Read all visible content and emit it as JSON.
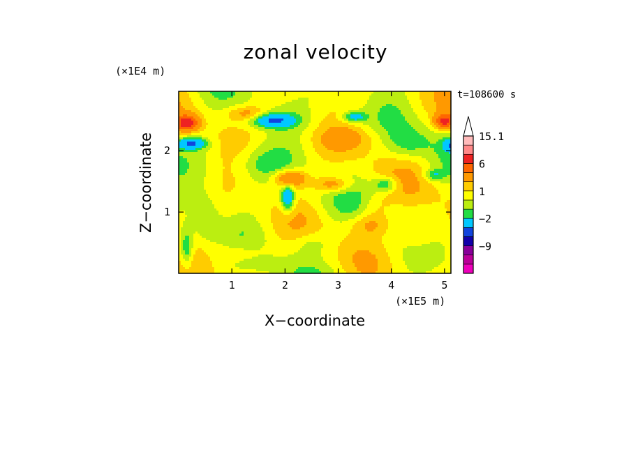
{
  "chart_data": {
    "type": "heatmap",
    "title": "zonal velocity",
    "xlabel": "X−coordinate",
    "ylabel": "Z−coordinate",
    "x_unit_label": "(×1E5 m)",
    "y_unit_label": "(×1E4 m)",
    "time_label": "t=108600 s",
    "xlim": [
      0,
      5.12
    ],
    "ylim": [
      0,
      2.97
    ],
    "x_ticks": [
      {
        "value": 1,
        "label": "1"
      },
      {
        "value": 2,
        "label": "2"
      },
      {
        "value": 3,
        "label": "3"
      },
      {
        "value": 4,
        "label": "4"
      },
      {
        "value": 5,
        "label": "5"
      }
    ],
    "y_ticks": [
      {
        "value": 1,
        "label": "1"
      },
      {
        "value": 2,
        "label": "2"
      }
    ],
    "colorbar": {
      "levels": [
        -15,
        -12,
        -9,
        -6,
        -4,
        -2,
        -1,
        0,
        1,
        2,
        4,
        6,
        9,
        12,
        15.1
      ],
      "colors": [
        "#ee00bb",
        "#bb0099",
        "#880099",
        "#1100aa",
        "#1144dd",
        "#00c8ff",
        "#22dd44",
        "#bbee11",
        "#ffff00",
        "#ffcc00",
        "#ff9900",
        "#ff6600",
        "#ee2222",
        "#ff8888",
        "#ffbbbb"
      ],
      "labels": [
        {
          "value": 15.1,
          "label": "15.1"
        },
        {
          "value": 6,
          "label": "6"
        },
        {
          "value": 1,
          "label": "1"
        },
        {
          "value": -2,
          "label": "−2"
        },
        {
          "value": -9,
          "label": "−9"
        }
      ],
      "extend": "max"
    },
    "features": [
      {
        "x": 0.15,
        "z": 2.45,
        "value": 6.5,
        "rx": 0.22,
        "rz": 0.13
      },
      {
        "x": 5.0,
        "z": 2.48,
        "value": 6.0,
        "rx": 0.18,
        "rz": 0.13
      },
      {
        "x": 0.25,
        "z": 2.12,
        "value": -4.5,
        "rx": 0.28,
        "rz": 0.09
      },
      {
        "x": 5.1,
        "z": 2.1,
        "value": -3.0,
        "rx": 0.12,
        "rz": 0.1
      },
      {
        "x": 1.75,
        "z": 2.5,
        "value": -4.5,
        "rx": 0.45,
        "rz": 0.12
      },
      {
        "x": 3.3,
        "z": 2.55,
        "value": -3.5,
        "rx": 0.22,
        "rz": 0.09
      },
      {
        "x": 1.3,
        "z": 2.6,
        "value": 2.5,
        "rx": 0.35,
        "rz": 0.12
      },
      {
        "x": 2.1,
        "z": 1.55,
        "value": 4.5,
        "rx": 0.3,
        "rz": 0.14
      },
      {
        "x": 2.05,
        "z": 1.22,
        "value": -4.5,
        "rx": 0.12,
        "rz": 0.22
      },
      {
        "x": 2.9,
        "z": 1.45,
        "value": 3.0,
        "rx": 0.35,
        "rz": 0.12
      },
      {
        "x": 3.9,
        "z": 1.45,
        "value": -3.0,
        "rx": 0.22,
        "rz": 0.12
      },
      {
        "x": 4.8,
        "z": 1.6,
        "value": -2.5,
        "rx": 0.2,
        "rz": 0.1
      },
      {
        "x": 1.6,
        "z": 1.8,
        "value": -1.5,
        "rx": 0.5,
        "rz": 0.25
      },
      {
        "x": 3.2,
        "z": 2.2,
        "value": 1.5,
        "rx": 0.6,
        "rz": 0.2
      },
      {
        "x": 4.3,
        "z": 2.1,
        "value": -1.5,
        "rx": 0.4,
        "rz": 0.25
      },
      {
        "x": 0.5,
        "z": 0.9,
        "value": -1.5,
        "rx": 0.25,
        "rz": 0.4
      },
      {
        "x": 0.15,
        "z": 0.4,
        "value": -3.0,
        "rx": 0.12,
        "rz": 0.3
      },
      {
        "x": 3.6,
        "z": 0.8,
        "value": 2.5,
        "rx": 0.4,
        "rz": 0.2
      },
      {
        "x": 4.5,
        "z": 0.6,
        "value": 2.0,
        "rx": 0.4,
        "rz": 0.25
      },
      {
        "x": 2.5,
        "z": 0.5,
        "value": -1.5,
        "rx": 0.4,
        "rz": 0.2
      },
      {
        "x": 1.2,
        "z": 0.35,
        "value": 1.5,
        "rx": 0.5,
        "rz": 0.2
      },
      {
        "x": 3.7,
        "z": 1.1,
        "value": 1.2,
        "rx": 0.3,
        "rz": 0.2
      }
    ]
  }
}
